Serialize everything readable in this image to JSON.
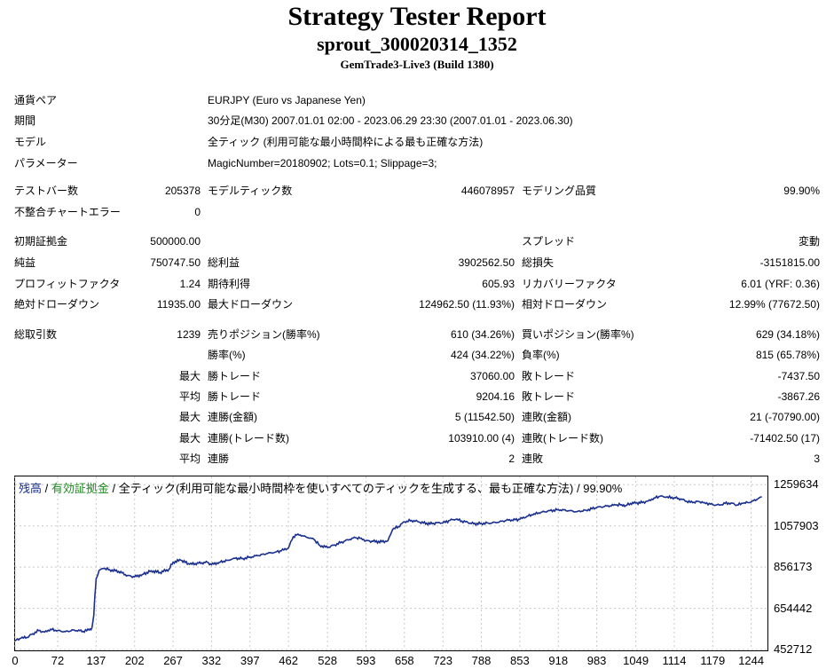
{
  "report": {
    "title": "Strategy Tester Report",
    "subtitle": "sprout_300020314_1352",
    "server": "GemTrade3-Live3 (Build 1380)"
  },
  "info": {
    "pair_label": "通貨ペア",
    "pair_value": "EURJPY (Euro vs Japanese Yen)",
    "period_label": "期間",
    "period_value": "30分足(M30) 2007.01.01 02:00 - 2023.06.29 23:30 (2007.01.01 - 2023.06.30)",
    "model_label": "モデル",
    "model_value": "全ティック (利用可能な最小時間枠による最も正確な方法)",
    "params_label": "パラメーター",
    "params_value": "MagicNumber=20180902; Lots=0.1; Slippage=3;"
  },
  "stats": {
    "bars_label": "テストバー数",
    "bars_value": "205378",
    "ticks_label": "モデルティック数",
    "ticks_value": "446078957",
    "quality_label": "モデリング品質",
    "quality_value": "99.90%",
    "mismatch_label": "不整合チャートエラー",
    "mismatch_value": "0",
    "deposit_label": "初期証拠金",
    "deposit_value": "500000.00",
    "spread_label": "スプレッド",
    "spread_value": "変動",
    "net_label": "純益",
    "net_value": "750747.50",
    "gross_profit_label": "総利益",
    "gross_profit_value": "3902562.50",
    "gross_loss_label": "総損失",
    "gross_loss_value": "-3151815.00",
    "pf_label": "プロフィットファクタ",
    "pf_value": "1.24",
    "expected_label": "期待利得",
    "expected_value": "605.93",
    "recovery_label": "リカバリーファクタ",
    "recovery_value": "6.01 (YRF: 0.36)",
    "abs_dd_label": "絶対ドローダウン",
    "abs_dd_value": "11935.00",
    "max_dd_label": "最大ドローダウン",
    "max_dd_value": "124962.50 (11.93%)",
    "rel_dd_label": "相対ドローダウン",
    "rel_dd_value": "12.99% (77672.50)",
    "total_trades_label": "総取引数",
    "total_trades_value": "1239",
    "short_label": "売りポジション(勝率%)",
    "short_value": "610 (34.26%)",
    "long_label": "買いポジション(勝率%)",
    "long_value": "629 (34.18%)",
    "win_label": "勝率(%)",
    "win_value": "424 (34.22%)",
    "loss_label": "負率(%)",
    "loss_value": "815 (65.78%)",
    "max_prefix": "最大",
    "avg_prefix": "平均",
    "largest_win_label": "勝トレード",
    "largest_win_value": "37060.00",
    "largest_loss_label": "敗トレード",
    "largest_loss_value": "-7437.50",
    "avg_win_label": "勝トレード",
    "avg_win_value": "9204.16",
    "avg_loss_label": "敗トレード",
    "avg_loss_value": "-3867.26",
    "max_cw_label": "連勝(金額)",
    "max_cw_value": "5 (11542.50)",
    "max_cl_label": "連敗(金額)",
    "max_cl_value": "21 (-70790.00)",
    "max_cp_label": "連勝(トレード数)",
    "max_cp_value": "103910.00 (4)",
    "max_closs_label": "連敗(トレード数)",
    "max_closs_value": "-71402.50 (17)",
    "avg_cw_label": "連勝",
    "avg_cw_value": "2",
    "avg_cl_label": "連敗",
    "avg_cl_value": "3"
  },
  "chart_legend": {
    "balance": "残高",
    "sep1": " / ",
    "equity": "有効証拠金",
    "sep2": " / ",
    "rest": "全ティック(利用可能な最小時間枠を使いすべてのティックを生成する、最も正確な方法) / 99.90%"
  },
  "chart_data": {
    "type": "line",
    "x_ticks": [
      0,
      72,
      137,
      202,
      267,
      332,
      397,
      462,
      528,
      593,
      658,
      723,
      788,
      853,
      918,
      983,
      1049,
      1114,
      1179,
      1244
    ],
    "y_ticks": [
      452712,
      654442,
      856173,
      1057903,
      1259634
    ],
    "xlim": [
      0,
      1270
    ],
    "ylim": [
      452712,
      1300000
    ],
    "series": [
      {
        "line_color": "#1a2f8e",
        "points": [
          [
            0,
            495000
          ],
          [
            10,
            508000
          ],
          [
            20,
            512000
          ],
          [
            30,
            530000
          ],
          [
            40,
            545000
          ],
          [
            50,
            538000
          ],
          [
            60,
            552000
          ],
          [
            72,
            545000
          ],
          [
            85,
            540000
          ],
          [
            100,
            548000
          ],
          [
            115,
            542000
          ],
          [
            125,
            548000
          ],
          [
            130,
            560000
          ],
          [
            133,
            620000
          ],
          [
            135,
            720000
          ],
          [
            137,
            800000
          ],
          [
            142,
            840000
          ],
          [
            150,
            850000
          ],
          [
            160,
            843000
          ],
          [
            175,
            835000
          ],
          [
            190,
            815000
          ],
          [
            202,
            808000
          ],
          [
            215,
            820000
          ],
          [
            230,
            838000
          ],
          [
            245,
            830000
          ],
          [
            260,
            845000
          ],
          [
            267,
            880000
          ],
          [
            280,
            890000
          ],
          [
            295,
            870000
          ],
          [
            310,
            875000
          ],
          [
            325,
            880000
          ],
          [
            332,
            868000
          ],
          [
            345,
            880000
          ],
          [
            360,
            890000
          ],
          [
            370,
            900000
          ],
          [
            385,
            898000
          ],
          [
            397,
            905000
          ],
          [
            410,
            912000
          ],
          [
            425,
            922000
          ],
          [
            440,
            930000
          ],
          [
            450,
            936000
          ],
          [
            462,
            950000
          ],
          [
            470,
            1005000
          ],
          [
            478,
            1018000
          ],
          [
            488,
            1008000
          ],
          [
            495,
            1000000
          ],
          [
            505,
            992000
          ],
          [
            515,
            962000
          ],
          [
            528,
            952000
          ],
          [
            540,
            965000
          ],
          [
            550,
            975000
          ],
          [
            562,
            990000
          ],
          [
            575,
            1000000
          ],
          [
            585,
            998000
          ],
          [
            593,
            985000
          ],
          [
            605,
            982000
          ],
          [
            620,
            980000
          ],
          [
            630,
            985000
          ],
          [
            638,
            1040000
          ],
          [
            648,
            1055000
          ],
          [
            658,
            1078000
          ],
          [
            670,
            1085000
          ],
          [
            680,
            1080000
          ],
          [
            690,
            1072000
          ],
          [
            705,
            1068000
          ],
          [
            715,
            1075000
          ],
          [
            723,
            1072000
          ],
          [
            735,
            1085000
          ],
          [
            745,
            1090000
          ],
          [
            755,
            1082000
          ],
          [
            765,
            1075000
          ],
          [
            775,
            1068000
          ],
          [
            788,
            1070000
          ],
          [
            800,
            1072000
          ],
          [
            815,
            1075000
          ],
          [
            830,
            1085000
          ],
          [
            845,
            1088000
          ],
          [
            853,
            1090000
          ],
          [
            865,
            1105000
          ],
          [
            875,
            1112000
          ],
          [
            885,
            1122000
          ],
          [
            900,
            1130000
          ],
          [
            918,
            1138000
          ],
          [
            935,
            1132000
          ],
          [
            950,
            1128000
          ],
          [
            965,
            1135000
          ],
          [
            983,
            1148000
          ],
          [
            1000,
            1155000
          ],
          [
            1015,
            1160000
          ],
          [
            1025,
            1162000
          ],
          [
            1032,
            1158000
          ],
          [
            1040,
            1168000
          ],
          [
            1049,
            1170000
          ],
          [
            1060,
            1172000
          ],
          [
            1070,
            1180000
          ],
          [
            1080,
            1195000
          ],
          [
            1090,
            1203000
          ],
          [
            1100,
            1198000
          ],
          [
            1114,
            1196000
          ],
          [
            1125,
            1190000
          ],
          [
            1135,
            1178000
          ],
          [
            1145,
            1172000
          ],
          [
            1155,
            1178000
          ],
          [
            1165,
            1172000
          ],
          [
            1179,
            1162000
          ],
          [
            1190,
            1160000
          ],
          [
            1200,
            1168000
          ],
          [
            1210,
            1170000
          ],
          [
            1220,
            1160000
          ],
          [
            1230,
            1168000
          ],
          [
            1244,
            1175000
          ],
          [
            1255,
            1190000
          ],
          [
            1262,
            1200000
          ]
        ]
      }
    ]
  }
}
